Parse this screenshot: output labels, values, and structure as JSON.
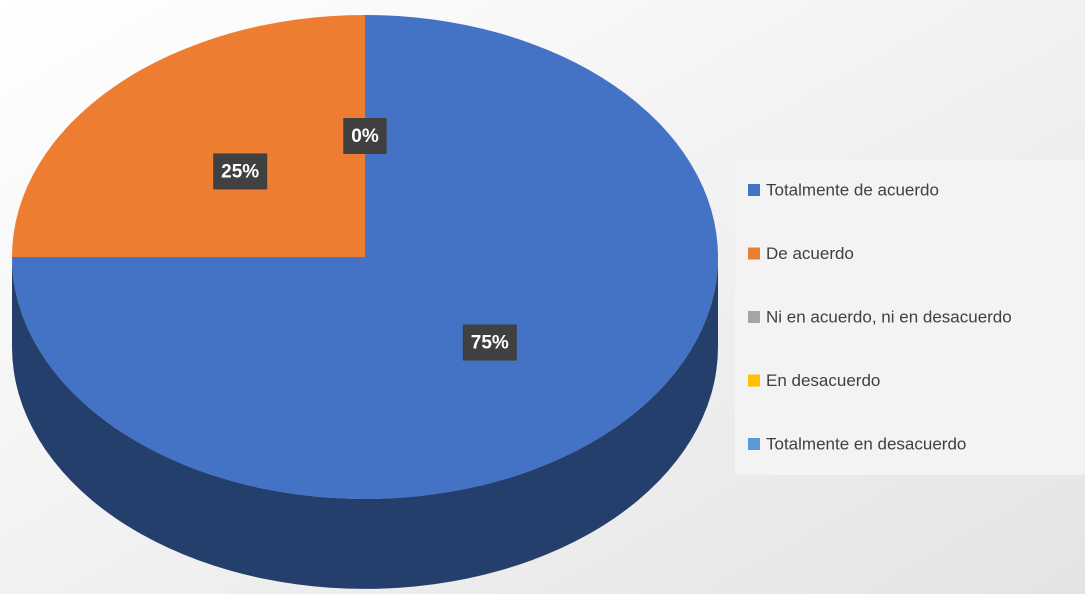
{
  "chart_data": {
    "type": "pie",
    "categories": [
      "Totalmente de acuerdo",
      "De acuerdo",
      "Ni en acuerdo, ni en desacuerdo",
      "En desacuerdo",
      "Totalmente en desacuerdo"
    ],
    "values": [
      75,
      25,
      0,
      0,
      0
    ],
    "value_labels": [
      "75%",
      "25%",
      "0%",
      null,
      null
    ],
    "colors": [
      "#4472c4",
      "#ed7d31",
      "#a5a5a5",
      "#ffc000",
      "#5b9bd5"
    ],
    "legend": "right"
  }
}
